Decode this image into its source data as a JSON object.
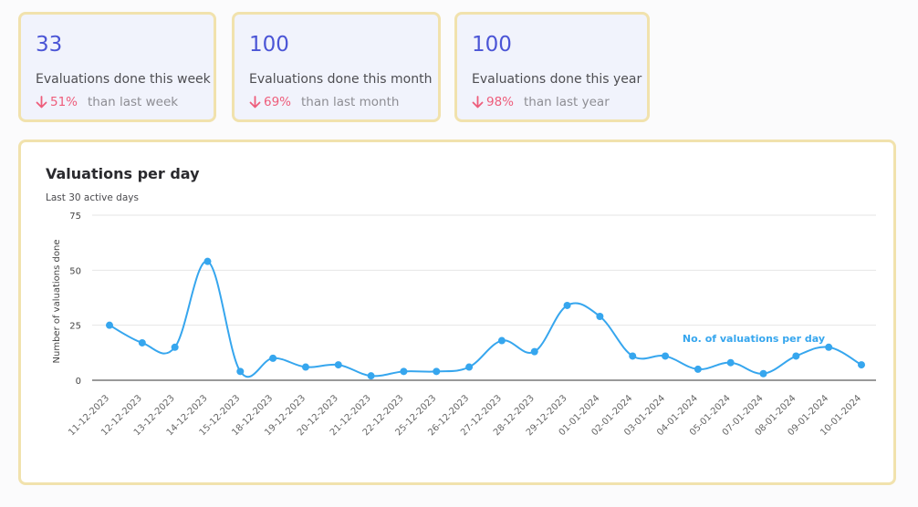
{
  "cards": [
    {
      "value": "33",
      "label": "Evaluations done this week",
      "percent": "51%",
      "comparison": "than last week"
    },
    {
      "value": "100",
      "label": "Evaluations done this month",
      "percent": "69%",
      "comparison": "than last month"
    },
    {
      "value": "100",
      "label": "Evaluations done this year",
      "percent": "98%",
      "comparison": "than last year"
    }
  ],
  "colors": {
    "accent": "#4b55d6",
    "negative": "#ee5d7b",
    "line": "#36a6ee",
    "card_border": "#f1e2ad"
  },
  "chart_data": {
    "type": "line",
    "title": "Valuations per day",
    "subtitle": "Last 30 active days",
    "xlabel": "",
    "ylabel": "Number of valuations done",
    "ylim": [
      0,
      75
    ],
    "yticks": [
      0,
      25,
      50,
      75
    ],
    "grid": true,
    "categories": [
      "11-12-2023",
      "12-12-2023",
      "13-12-2023",
      "14-12-2023",
      "15-12-2023",
      "18-12-2023",
      "19-12-2023",
      "20-12-2023",
      "21-12-2023",
      "22-12-2023",
      "25-12-2023",
      "26-12-2023",
      "27-12-2023",
      "28-12-2023",
      "29-12-2023",
      "01-01-2024",
      "02-01-2024",
      "03-01-2024",
      "04-01-2024",
      "05-01-2024",
      "07-01-2024",
      "08-01-2024",
      "09-01-2024",
      "10-01-2024"
    ],
    "series": [
      {
        "name": "No. of valuations per day",
        "values": [
          25,
          17,
          15,
          54,
          4,
          10,
          6,
          7,
          2,
          4,
          4,
          6,
          18,
          13,
          34,
          29,
          11,
          11,
          5,
          8,
          3,
          11,
          15,
          7
        ]
      }
    ],
    "legend": "inline-right"
  }
}
